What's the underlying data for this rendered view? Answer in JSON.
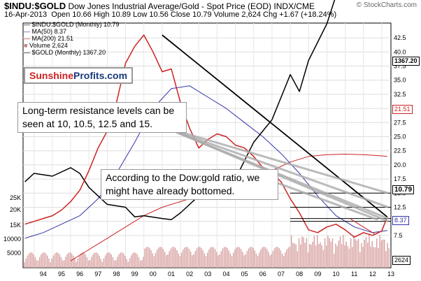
{
  "header": {
    "symbol": "$INDU:$GOLD",
    "title_rest": "Dow Jones Industrial Average/Gold - Spot Price (EOD)  INDX/CME",
    "watermark": "© StockCharts.com",
    "date": "16-Apr-2013",
    "ohlc": "Open 10.66  High 10.89  Low 10.56  Close 10.79  Volume 2,624  Chg +1.67 (+18.24%)"
  },
  "legend": [
    {
      "text": "$INDU:$GOLD (Monthly) 10.79",
      "color": "#000000"
    },
    {
      "text": "MA(50) 8.37",
      "color": "#3333aa"
    },
    {
      "text": "MA(200) 21.51",
      "color": "#cc2222"
    },
    {
      "text": "Volume 2,624",
      "color": "#c08080"
    },
    {
      "text": "$GOLD (Monthly) 1367.20",
      "color": "#000000"
    }
  ],
  "logo": {
    "part1": "Sunshine",
    "part2": "Profits.com"
  },
  "annotations": {
    "note1": "Long-term resistance levels can be seen at 10, 10.5, 12.5 and 15.",
    "note2": "According to the Dow:gold ratio, we might have already bottomed."
  },
  "badges": {
    "gold_last": "1367.20",
    "ma200": "21.51",
    "ratio_last": "10.79",
    "ma50": "8.37",
    "volume": "2624"
  },
  "chart_data": {
    "type": "line",
    "x_ticks": [
      "94",
      "95",
      "96",
      "97",
      "98",
      "99",
      "00",
      "01",
      "02",
      "03",
      "04",
      "05",
      "06",
      "07",
      "08",
      "09",
      "10",
      "11",
      "12",
      "13"
    ],
    "y_ticks_right": [
      "42.5",
      "40.0",
      "37.5",
      "35.0",
      "32.5",
      "30.0",
      "27.5",
      "25.0",
      "22.5",
      "20.0",
      "17.5",
      "15.0",
      "12.5",
      "10.0",
      "7.5"
    ],
    "y_ticks_left_gold": [
      "25K",
      "20K",
      "15K"
    ],
    "y_ticks_left_volume": [
      "10000",
      "5000"
    ],
    "series": [
      {
        "name": "$INDU:$GOLD (Monthly)",
        "color": "#cc2222",
        "x": [
          1993.5,
          1994.0,
          1994.5,
          1995.0,
          1995.5,
          1996.0,
          1996.5,
          1997.0,
          1997.5,
          1998.0,
          1998.5,
          1999.0,
          1999.5,
          2000.0,
          2000.5,
          2001.0,
          2001.5,
          2002.0,
          2002.5,
          2003.0,
          2003.5,
          2004.0,
          2004.5,
          2005.0,
          2005.5,
          2006.0,
          2006.5,
          2007.0,
          2007.5,
          2008.0,
          2008.5,
          2009.0,
          2009.5,
          2010.0,
          2010.5,
          2011.0,
          2011.5,
          2012.0,
          2012.5,
          2013.0,
          2013.3
        ],
        "y": [
          9.5,
          10.0,
          10.5,
          11.0,
          12.0,
          13.5,
          15.5,
          19.0,
          23.0,
          26.0,
          31.0,
          38.0,
          41.0,
          43.0,
          40.0,
          36.5,
          37.0,
          31.0,
          26.5,
          23.0,
          24.5,
          25.5,
          25.0,
          23.5,
          23.0,
          21.5,
          19.5,
          18.5,
          17.0,
          14.0,
          11.5,
          8.5,
          8.0,
          9.0,
          9.5,
          8.5,
          7.2,
          8.0,
          7.5,
          8.3,
          10.79
        ]
      },
      {
        "name": "MA(50)",
        "color": "#3333aa",
        "x": [
          1993.5,
          1994.5,
          1995.5,
          1996.5,
          1997.5,
          1998.5,
          1999.5,
          2000.5,
          2001.5,
          2002.5,
          2003.5,
          2004.5,
          2005.5,
          2006.5,
          2007.5,
          2008.5,
          2009.5,
          2010.5,
          2011.5,
          2012.5,
          2013.3
        ],
        "y": [
          7.0,
          8.0,
          9.5,
          11.0,
          14.0,
          18.5,
          24.0,
          30.0,
          33.5,
          34.0,
          32.0,
          30.0,
          27.5,
          25.0,
          22.0,
          18.5,
          14.5,
          11.0,
          9.0,
          8.0,
          8.37
        ]
      },
      {
        "name": "MA(200)",
        "color": "#cc2222",
        "x": [
          1996.0,
          1997.0,
          1998.0,
          1999.0,
          2000.0,
          2001.0,
          2002.0,
          2003.0,
          2004.0,
          2005.0,
          2006.0,
          2007.0,
          2008.0,
          2009.0,
          2010.0,
          2011.0,
          2012.0,
          2013.0,
          2013.3
        ],
        "y": [
          3.0,
          5.0,
          7.0,
          9.0,
          11.0,
          12.5,
          13.5,
          14.5,
          15.5,
          16.5,
          17.5,
          19.0,
          20.5,
          21.5,
          21.8,
          21.9,
          21.8,
          21.6,
          21.51
        ]
      },
      {
        "name": "$GOLD (Monthly)",
        "x": [
          1993.5,
          1994.0,
          1995.0,
          1996.0,
          1996.5,
          1997.0,
          1997.5,
          1998.0,
          1999.0,
          1999.5,
          2000.0,
          2001.0,
          2001.5,
          2002.0,
          2003.0,
          2004.0,
          2005.0,
          2006.0,
          2006.5,
          2007.0,
          2008.0,
          2008.5,
          2009.0,
          2010.0,
          2011.0,
          2011.7,
          2012.0,
          2012.5,
          2013.0,
          2013.3
        ],
        "y": [
          17.0,
          18.5,
          18.0,
          19.5,
          18.5,
          16.0,
          14.5,
          13.0,
          12.5,
          10.8,
          11.0,
          10.5,
          10.3,
          11.5,
          14.5,
          16.5,
          17.5,
          24.0,
          26.0,
          28.0,
          36.0,
          33.0,
          38.5,
          45.0,
          55.0,
          70.0,
          66.0,
          65.0,
          63.0,
          52.0
        ]
      }
    ],
    "resistance_levels": [
      15,
      12.5,
      10.5,
      10
    ],
    "trend_line": {
      "from": [
        2001.0,
        43.0
      ],
      "to": [
        2013.3,
        10.79
      ]
    },
    "target_line": {
      "from": [
        2011.3,
        10.4
      ],
      "to": [
        2012.6,
        7.8
      ]
    }
  }
}
